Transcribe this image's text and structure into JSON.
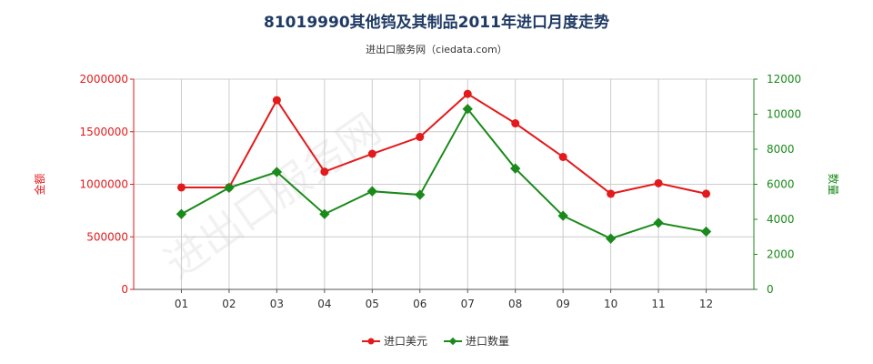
{
  "title": "81019990其他钨及其制品2011年进口月度走势",
  "subtitle": "进出口服务网（ciedata.com）",
  "watermark": "进出口服务网",
  "colors": {
    "amount": "#e31a1c",
    "quantity": "#1a8a1a",
    "grid": "#cccccc",
    "axis": "#555555"
  },
  "chart_data": {
    "type": "line",
    "categories": [
      "01",
      "02",
      "03",
      "04",
      "05",
      "06",
      "07",
      "08",
      "09",
      "10",
      "11",
      "12"
    ],
    "series": [
      {
        "name": "进口美元",
        "axis": "left",
        "values": [
          970000,
          970000,
          1800000,
          1120000,
          1290000,
          1450000,
          1860000,
          1580000,
          1260000,
          910000,
          1010000,
          910000
        ]
      },
      {
        "name": "进口数量",
        "axis": "right",
        "values": [
          4300,
          5800,
          6700,
          4300,
          5600,
          5400,
          10300,
          6900,
          4200,
          2900,
          3800,
          3300
        ]
      }
    ],
    "ylabel_left": "金额",
    "ylabel_right": "数量",
    "ylim_left": [
      0,
      2000000
    ],
    "yticks_left": [
      0,
      500000,
      1000000,
      1500000,
      2000000
    ],
    "ylim_right": [
      0,
      12000
    ],
    "yticks_right": [
      0,
      2000,
      4000,
      6000,
      8000,
      10000,
      12000
    ],
    "grid": true,
    "legend_position": "bottom-center"
  }
}
